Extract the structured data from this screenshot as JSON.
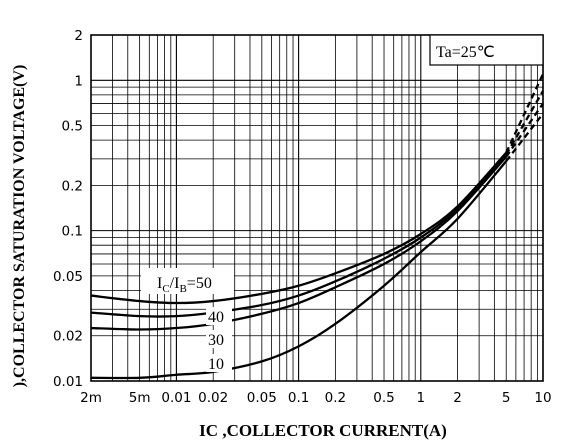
{
  "chart_data": {
    "type": "line",
    "xlabel": "IC ,COLLECTOR CURRENT(A)",
    "ylabel": "),COLLECTOR SATURATION VOLTAGE(V)",
    "x_scale": "log",
    "y_scale": "log",
    "xlim": [
      0.002,
      10
    ],
    "ylim": [
      0.01,
      2
    ],
    "grid": true,
    "x_ticks": [
      {
        "value": 0.002,
        "label": "2m"
      },
      {
        "value": 0.005,
        "label": "5m"
      },
      {
        "value": 0.01,
        "label": "0.01"
      },
      {
        "value": 0.02,
        "label": "0.02"
      },
      {
        "value": 0.05,
        "label": "0.05"
      },
      {
        "value": 0.1,
        "label": "0.1"
      },
      {
        "value": 0.2,
        "label": "0.2"
      },
      {
        "value": 0.5,
        "label": "0.5"
      },
      {
        "value": 1,
        "label": "1"
      },
      {
        "value": 2,
        "label": "2"
      },
      {
        "value": 5,
        "label": "5"
      },
      {
        "value": 10,
        "label": "10"
      }
    ],
    "y_ticks": [
      {
        "value": 0.01,
        "label": "0.01"
      },
      {
        "value": 0.02,
        "label": "0.02"
      },
      {
        "value": 0.05,
        "label": "0.05"
      },
      {
        "value": 0.1,
        "label": "0.1"
      },
      {
        "value": 0.2,
        "label": "0.2"
      },
      {
        "value": 0.5,
        "label": "0.5"
      },
      {
        "value": 1,
        "label": "1"
      },
      {
        "value": 2,
        "label": "2"
      }
    ],
    "condition_label": "Ta=25℃",
    "series_label": {
      "main": "I",
      "sub1": "C",
      "slash": "/I",
      "sub2": "B",
      "suffix": "=50"
    },
    "series": [
      {
        "name": "50",
        "label": "",
        "x": [
          0.002,
          0.005,
          0.01,
          0.02,
          0.05,
          0.1,
          0.2,
          0.5,
          1,
          2,
          5
        ],
        "y": [
          0.037,
          0.034,
          0.033,
          0.034,
          0.038,
          0.043,
          0.052,
          0.07,
          0.095,
          0.145,
          0.33
        ],
        "dashed_x": [
          5,
          10
        ],
        "dashed_y": [
          0.33,
          1.1
        ]
      },
      {
        "name": "40",
        "label": "40",
        "x": [
          0.002,
          0.005,
          0.01,
          0.02,
          0.05,
          0.1,
          0.2,
          0.5,
          1,
          2,
          5
        ],
        "y": [
          0.0285,
          0.027,
          0.027,
          0.0285,
          0.032,
          0.037,
          0.046,
          0.065,
          0.09,
          0.14,
          0.32
        ],
        "dashed_x": [
          5,
          10
        ],
        "dashed_y": [
          0.32,
          0.85
        ]
      },
      {
        "name": "30",
        "label": "30",
        "x": [
          0.002,
          0.005,
          0.01,
          0.02,
          0.05,
          0.1,
          0.2,
          0.5,
          1,
          2,
          5
        ],
        "y": [
          0.0225,
          0.022,
          0.0225,
          0.024,
          0.028,
          0.033,
          0.042,
          0.06,
          0.085,
          0.135,
          0.31
        ],
        "dashed_x": [
          5,
          10
        ],
        "dashed_y": [
          0.31,
          0.7
        ]
      },
      {
        "name": "10",
        "label": "10",
        "x": [
          0.002,
          0.005,
          0.01,
          0.02,
          0.05,
          0.1,
          0.2,
          0.5,
          1,
          2,
          5
        ],
        "y": [
          0.0105,
          0.0105,
          0.011,
          0.0115,
          0.0135,
          0.017,
          0.024,
          0.043,
          0.072,
          0.12,
          0.29
        ],
        "dashed_x": [
          5,
          10
        ],
        "dashed_y": [
          0.29,
          0.6
        ]
      }
    ]
  }
}
